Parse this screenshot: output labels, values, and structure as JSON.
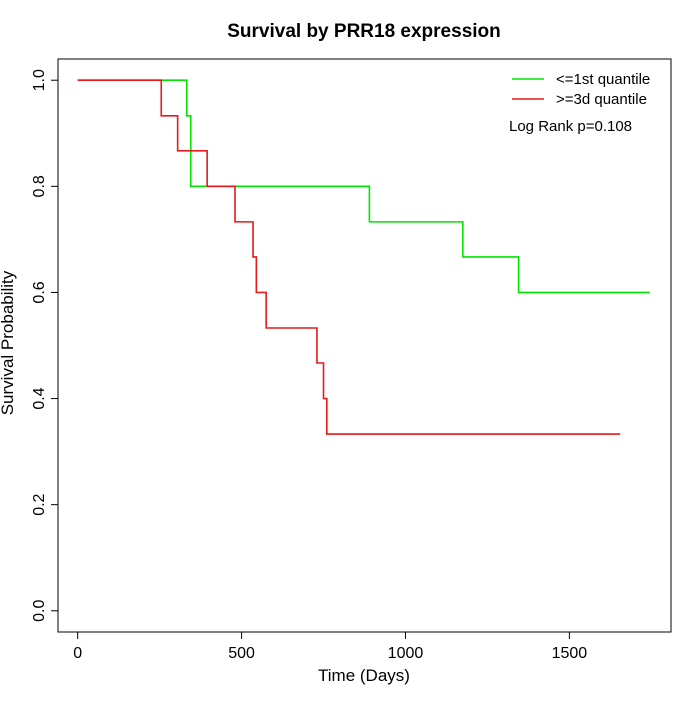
{
  "chart_data": {
    "type": "line",
    "title": "Survival by PRR18 expression",
    "xlabel": "Time (Days)",
    "ylabel": "Survival Probability",
    "xlim": [
      -60,
      1810
    ],
    "ylim": [
      -0.04,
      1.04
    ],
    "x_ticks": [
      0,
      500,
      1000,
      1500
    ],
    "y_ticks": [
      0.0,
      0.2,
      0.4,
      0.6,
      0.8,
      1.0
    ],
    "x_tick_labels": [
      "0",
      "500",
      "1000",
      "1500"
    ],
    "y_tick_labels": [
      "0.0",
      "0.2",
      "0.4",
      "0.6",
      "0.8",
      "1.0"
    ],
    "grid": false,
    "legend_position": "top-right",
    "annotation": "Log Rank p=0.108",
    "series": [
      {
        "name": "<=1st quantile",
        "color": "#00e400",
        "step": true,
        "x": [
          0,
          330,
          333,
          345,
          890,
          1175,
          1345,
          1745
        ],
        "y": [
          1.0,
          1.0,
          0.933,
          0.8,
          0.733,
          0.667,
          0.6,
          0.6
        ]
      },
      {
        "name": ">=3d quantile",
        "color": "#e41a1c",
        "step": true,
        "x": [
          0,
          255,
          305,
          395,
          480,
          535,
          545,
          575,
          730,
          750,
          760,
          1655
        ],
        "y": [
          1.0,
          0.933,
          0.867,
          0.8,
          0.733,
          0.667,
          0.6,
          0.533,
          0.467,
          0.4,
          0.333,
          0.333
        ]
      }
    ]
  }
}
